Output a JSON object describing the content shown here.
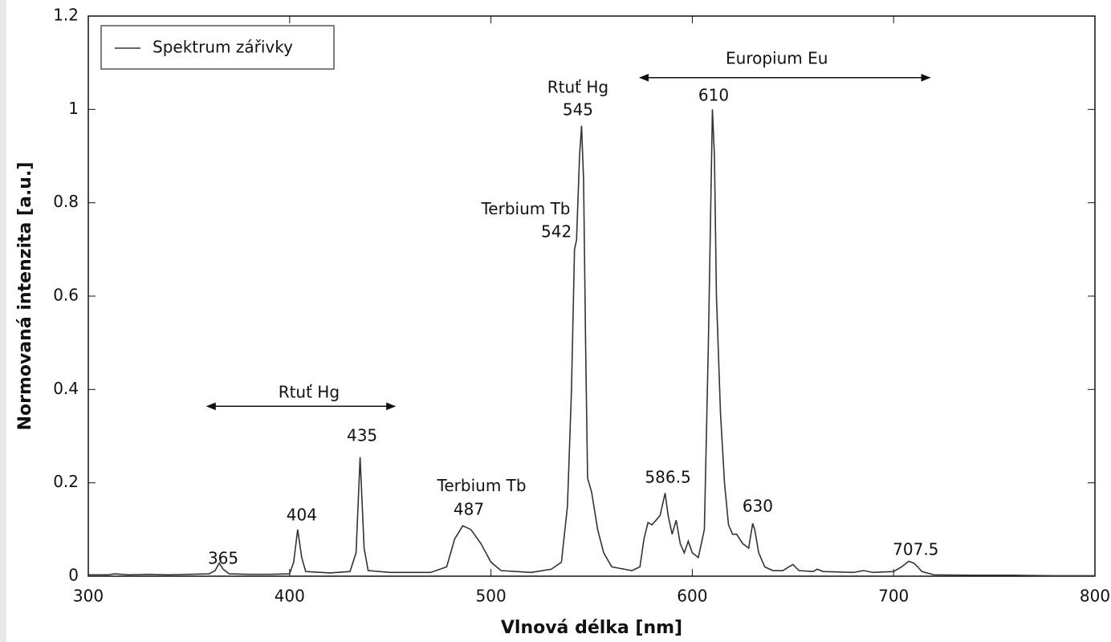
{
  "chart_data": {
    "type": "line",
    "xlabel": "Vlnová délka [nm]",
    "ylabel": "Normovaná intenzita [a.u.]",
    "xlim": [
      300,
      800
    ],
    "xticks": [
      300,
      400,
      500,
      600,
      700,
      800
    ],
    "ylim": [
      0,
      1.2
    ],
    "yticks": [
      0,
      0.2,
      0.4,
      0.6,
      0.8,
      1,
      1.2
    ],
    "legend": "upper left",
    "x": [
      300,
      310,
      313,
      320,
      330,
      340,
      350,
      360,
      363,
      365,
      367,
      370,
      380,
      390,
      400,
      402,
      404,
      406,
      408,
      420,
      430,
      433,
      435,
      437,
      439,
      450,
      460,
      470,
      478,
      482,
      486,
      490,
      495,
      500,
      505,
      520,
      530,
      535,
      538,
      540,
      541.5,
      542.5,
      544,
      545,
      546,
      547,
      548,
      550,
      553,
      556,
      560,
      570,
      574,
      576,
      578,
      580,
      582,
      584,
      586.5,
      588,
      590,
      592,
      594,
      596,
      598,
      600,
      603,
      606,
      608,
      610,
      611,
      612,
      614,
      616,
      618,
      620,
      622,
      625,
      628,
      630,
      631,
      633,
      636,
      640,
      645,
      648,
      650,
      653,
      660,
      662,
      665,
      680,
      685,
      690,
      700,
      704,
      707.5,
      710,
      712,
      714,
      720,
      740,
      760,
      780,
      800
    ],
    "series": [
      {
        "name": "Spektrum zářivky",
        "color": "#333333",
        "values": [
          0.003,
          0.003,
          0.005,
          0.003,
          0.004,
          0.003,
          0.004,
          0.005,
          0.012,
          0.028,
          0.015,
          0.005,
          0.004,
          0.004,
          0.005,
          0.03,
          0.1,
          0.04,
          0.01,
          0.007,
          0.01,
          0.05,
          0.255,
          0.06,
          0.012,
          0.008,
          0.008,
          0.008,
          0.02,
          0.08,
          0.108,
          0.1,
          0.07,
          0.03,
          0.012,
          0.008,
          0.015,
          0.03,
          0.15,
          0.4,
          0.7,
          0.72,
          0.9,
          0.965,
          0.85,
          0.5,
          0.21,
          0.18,
          0.1,
          0.05,
          0.02,
          0.012,
          0.02,
          0.08,
          0.115,
          0.11,
          0.12,
          0.13,
          0.178,
          0.13,
          0.09,
          0.12,
          0.07,
          0.05,
          0.075,
          0.05,
          0.04,
          0.1,
          0.5,
          1.0,
          0.9,
          0.6,
          0.35,
          0.2,
          0.11,
          0.09,
          0.09,
          0.07,
          0.06,
          0.113,
          0.1,
          0.05,
          0.02,
          0.012,
          0.012,
          0.02,
          0.025,
          0.012,
          0.01,
          0.015,
          0.01,
          0.008,
          0.012,
          0.008,
          0.01,
          0.02,
          0.032,
          0.028,
          0.02,
          0.01,
          0.003,
          0.002,
          0.002,
          0.001,
          0.001
        ]
      }
    ],
    "annotations": [
      {
        "text": "365",
        "x": 367,
        "y": 0.036
      },
      {
        "text": "404",
        "x": 406,
        "y": 0.129
      },
      {
        "text": "435",
        "x": 436,
        "y": 0.299
      },
      {
        "text": "Terbium Tb",
        "x": 495.4,
        "y": 0.192
      },
      {
        "text": "487",
        "x": 489,
        "y": 0.141
      },
      {
        "text": "Terbium Tb",
        "x": 517.3,
        "y": 0.785
      },
      {
        "text": "542",
        "x": 532.5,
        "y": 0.736
      },
      {
        "text": "Rtuť Hg",
        "x": 543.2,
        "y": 1.045
      },
      {
        "text": "545",
        "x": 543.2,
        "y": 0.997
      },
      {
        "text": "610",
        "x": 610.6,
        "y": 1.028
      },
      {
        "text": "586.5",
        "x": 587.9,
        "y": 0.21
      },
      {
        "text": "630",
        "x": 632.5,
        "y": 0.148
      },
      {
        "text": "707.5",
        "x": 711,
        "y": 0.055
      },
      {
        "text": "Rtuť Hg",
        "x": 409.6,
        "y": 0.392
      },
      {
        "text": "Europium Eu",
        "x": 642,
        "y": 1.107
      }
    ],
    "arrows": [
      {
        "x": [
          359,
          452.3
        ],
        "y": 0.364
      },
      {
        "x": [
          574,
          718
        ],
        "y": 1.068
      }
    ]
  }
}
